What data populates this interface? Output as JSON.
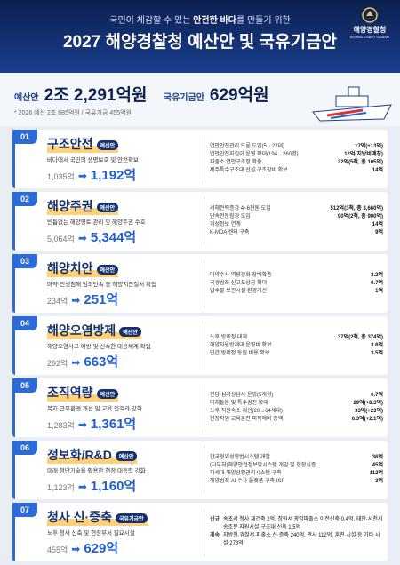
{
  "header": {
    "subtitle": [
      "국민이 체감할 수 있는 ",
      "안전한 바다",
      "를 만들기 위한"
    ],
    "title": "2027 해양경찰청 예산안 및 국유기금안",
    "logo": "해양경찰청",
    "logo_en": "KOREA COAST GUARD"
  },
  "summary": {
    "budget_label": "예산안",
    "budget": "2조 2,291억원",
    "fund_label": "국유기금안",
    "fund": "629억원",
    "note": "* 2026 예산 2조 885억원 / 국유기금 455억원"
  },
  "sections": [
    {
      "num": "01",
      "title": "구조안전",
      "tag": "예산안",
      "desc": "바다에서 국민의 생명보호 및 안전확보",
      "before": "1,035억",
      "after": "1,192억",
      "items": [
        {
          "label": "연안안전관리 드론 도입(5→22대)",
          "value": "17억(+13억)"
        },
        {
          "label": "연안안전지킴이 운영 확대(194→260명)",
          "value": "12억(지방비매칭)"
        },
        {
          "label": "파출소 연안구조정 확충",
          "value": "32억(5척, 총 105억)"
        },
        {
          "label": "제주특수구조대 신설 구조장비 확보",
          "value": "14억"
        }
      ]
    },
    {
      "num": "02",
      "title": "해양주권",
      "tag": "예산안",
      "desc": "빈틈없는 해양영토 관리 및 해양주권 수호",
      "before": "5,064억",
      "after": "5,344억",
      "items": [
        {
          "label": "서해전력증강 4~6천톤 도입",
          "value": "512억(3척, 총 3,660억)"
        },
        {
          "label": "단속전문함정 도입",
          "value": "90억(2척, 총 900억)"
        },
        {
          "label": "위성정보 연계",
          "value": "14억"
        },
        {
          "label": "K-MDA 센터 구축",
          "value": "9억"
        }
      ]
    },
    {
      "num": "03",
      "title": "해양치안",
      "tag": "예산안",
      "desc": "마약·민생침해 범죄단속 등 해양치안질서 확립",
      "before": "234억",
      "after": "251억",
      "items": [
        {
          "label": "마약수사 역량강화 장비확충",
          "value": "3.2억"
        },
        {
          "label": "국경범죄 신고포상금 확대",
          "value": "0.7억"
        },
        {
          "label": "압수물 보관시설 환경개선",
          "value": "1억"
        }
      ]
    },
    {
      "num": "04",
      "title": "해양오염방제",
      "tag": "예산안",
      "desc": "해양오염사고 예방 및 신속한 대응체계 확립",
      "before": "292억",
      "after": "663억",
      "items": [
        {
          "label": "노후 방제정 대체",
          "value": "37억(2척, 총 374억)"
        },
        {
          "label": "해양자율방제대 운영비 확보",
          "value": "3.6억"
        },
        {
          "label": "민간 방제정 동원 비용 확보",
          "value": "3.5억"
        }
      ]
    },
    {
      "num": "05",
      "title": "조직역량",
      "tag": "예산안",
      "desc": "복지·근무환경 개선 및 교육 인프라 강화",
      "before": "1,283억",
      "after": "1,361억",
      "items": [
        {
          "label": "전담 심리상담사 운영(5개청)",
          "value": "6.7억"
        },
        {
          "label": "미래돌봄 및 특수검진 확대",
          "value": "29억(+8.3억)"
        },
        {
          "label": "노후 직원숙소 개선(20→64세대)",
          "value": "33억(+23억)"
        },
        {
          "label": "현장작업 교육훈련 피복예비 증액",
          "value": "6.3억(+2.1억)"
        }
      ]
    },
    {
      "num": "06",
      "title": "정보화/R&D",
      "tag": "예산안",
      "desc": "미래 첨단기술을 활용한 현장 대응력 강화",
      "before": "1,123억",
      "after": "1,160억",
      "items": [
        {
          "label": "한국형위성항법시스템 개발",
          "value": "36억"
        },
        {
          "label": "(다부처)해양안전정보망시스템 개발 및 현장실증",
          "value": "45억"
        },
        {
          "label": "차세대 해양상황관리시스템 구축",
          "value": "112억"
        },
        {
          "label": "해양범죄 AI 수사 플랫폼 구축 ISP",
          "value": "3억"
        }
      ]
    },
    {
      "num": "07",
      "title": "청사 신·증축",
      "tag": "국유기금안",
      "desc": "노후 청사 신축 및 현장부서 필요시설",
      "before": "455억",
      "after": "629억",
      "items": [
        {
          "label": "신규",
          "value": "속초서 청사 재건축 2억, 창원서 광암파출소 이전신축 0.4억, 태안·서천서 송조문 지원시설·구조대 신축 1.5억"
        },
        {
          "label": "계속",
          "value": "지방청·경찰서·파출소 신·증축 240억, 관사 112억, 훈련 시설 등 기타 시설 273억"
        }
      ]
    }
  ]
}
